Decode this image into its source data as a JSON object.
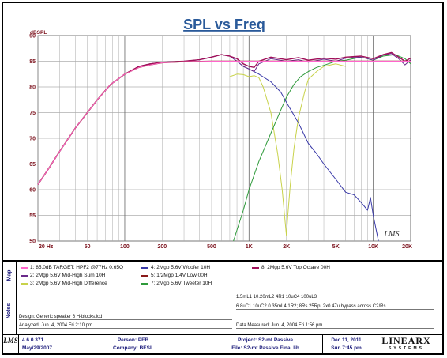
{
  "chart_data": {
    "type": "line",
    "title": "SPL vs Freq",
    "ylabel": "dBSPL",
    "xscale": "log",
    "xlim": [
      20,
      20000
    ],
    "ylim": [
      50,
      90
    ],
    "x_tick_labels": [
      {
        "value": 20,
        "label": "20 Hz"
      },
      {
        "value": 50,
        "label": "50"
      },
      {
        "value": 100,
        "label": "100"
      },
      {
        "value": 200,
        "label": "200"
      },
      {
        "value": 500,
        "label": "500"
      },
      {
        "value": 1000,
        "label": "1K"
      },
      {
        "value": 2000,
        "label": "2K"
      },
      {
        "value": 5000,
        "label": "5K"
      },
      {
        "value": 10000,
        "label": "10K"
      },
      {
        "value": 20000,
        "label": "20K"
      }
    ],
    "y_ticks": [
      50,
      55,
      60,
      65,
      70,
      75,
      80,
      85,
      90
    ],
    "grid": true,
    "watermark": "LMS",
    "series": [
      {
        "name": "1: 85.0dB TARGET: HPF2 @77Hz 0.65Q",
        "color": "#ff66cc",
        "x": [
          20,
          25,
          30,
          40,
          50,
          60,
          77,
          100,
          130,
          160,
          200,
          300,
          500,
          700,
          1000,
          2000,
          5000,
          10000,
          20000
        ],
        "y": [
          61,
          64.5,
          67.5,
          72,
          75,
          77.5,
          80.5,
          82.5,
          83.8,
          84.3,
          84.7,
          84.9,
          85,
          85,
          85,
          85,
          85,
          85,
          85
        ]
      },
      {
        "name": "2: 2Mgp 5.6V Mid-High Sum 10H",
        "color": "#6a2a8a",
        "x": [
          20,
          25,
          30,
          40,
          50,
          60,
          77,
          100,
          130,
          160,
          200,
          300,
          400,
          500,
          600,
          700,
          800,
          900,
          1000,
          1100,
          1200,
          1500,
          2000,
          2500,
          3000,
          4000,
          5000,
          6000,
          8000,
          10000,
          12000,
          14000,
          16000,
          18000,
          20000
        ],
        "y": [
          61,
          64.5,
          67.5,
          72,
          75,
          77.5,
          80.5,
          82.5,
          84,
          84.5,
          84.8,
          85,
          85.3,
          85.8,
          86.3,
          86,
          85,
          84,
          83.5,
          83,
          84.5,
          85.5,
          85,
          85.3,
          84.8,
          85.4,
          85,
          85.6,
          85.8,
          85.2,
          86.2,
          86.5,
          85.5,
          84.3,
          85.3
        ]
      },
      {
        "name": "3: 2Mgp 5.6V Mid-High Difference",
        "color": "#c8d24a",
        "x": [
          700,
          800,
          900,
          1000,
          1100,
          1200,
          1300,
          1500,
          1700,
          1850,
          1950,
          2000,
          2050,
          2150,
          2300,
          2500,
          2800,
          3000,
          3500,
          4000,
          5000,
          6000
        ],
        "y": [
          82,
          82.5,
          82.4,
          82,
          82.2,
          81.8,
          80,
          75,
          67,
          60,
          54,
          51,
          55,
          61,
          68,
          74,
          79,
          81.5,
          83,
          84,
          84.5,
          84
        ]
      },
      {
        "name": "4: 2Mgp 5.6V Woofer 10H",
        "color": "#3a3aa8",
        "x": [
          20,
          25,
          30,
          40,
          50,
          60,
          77,
          100,
          130,
          160,
          200,
          300,
          400,
          500,
          600,
          700,
          800,
          900,
          1000,
          1200,
          1500,
          1800,
          2000,
          2500,
          3000,
          3500,
          4000,
          5000,
          6000,
          7000,
          8000,
          9000,
          9500,
          10000,
          11000
        ],
        "y": [
          61,
          64.5,
          67.5,
          72,
          75,
          77.5,
          80.5,
          82.5,
          84,
          84.5,
          84.8,
          85,
          85.3,
          85.8,
          86.3,
          86,
          85,
          84,
          83.5,
          82.5,
          81,
          79,
          77,
          73,
          69,
          67,
          65,
          62,
          59.5,
          59,
          57.5,
          56,
          58.5,
          55,
          50
        ]
      },
      {
        "name": "5: 1/2Mgp 1.4V Low 00H",
        "color": "#8a1a1a",
        "x": [
          20,
          25,
          30,
          40,
          50,
          60,
          77,
          100,
          130,
          160,
          200,
          300,
          500,
          700,
          1000,
          2000,
          5000,
          10000,
          20000
        ],
        "y": [
          61,
          64.5,
          67.5,
          72,
          75,
          77.5,
          80.5,
          82.5,
          83.8,
          84.3,
          84.7,
          84.9,
          85,
          85,
          85,
          85,
          85,
          85,
          85
        ]
      },
      {
        "name": "7: 2Mgp 5.6V Tweeter 10H",
        "color": "#2e9a3a",
        "x": [
          750,
          900,
          1000,
          1200,
          1500,
          1800,
          2000,
          2300,
          2600,
          3000,
          3500,
          4000,
          5000,
          6000,
          8000,
          10000,
          12000,
          15000,
          18000,
          20000
        ],
        "y": [
          50,
          56,
          60,
          65.5,
          71,
          75.5,
          78,
          80.5,
          82,
          83,
          83.8,
          84.2,
          85,
          85.2,
          85.8,
          85.2,
          86,
          86.3,
          85.5,
          84.5
        ]
      },
      {
        "name": "8: 2Mgp 5.6V Top Octave 00H",
        "color": "#a0105a",
        "x": [
          20,
          25,
          30,
          40,
          50,
          60,
          77,
          100,
          130,
          160,
          200,
          300,
          400,
          500,
          600,
          700,
          800,
          900,
          1000,
          1100,
          1200,
          1500,
          2000,
          2500,
          3000,
          4000,
          5000,
          6000,
          8000,
          10000,
          12000,
          14000,
          16000,
          18000,
          20000
        ],
        "y": [
          61,
          64.5,
          67.5,
          72,
          75,
          77.5,
          80.5,
          82.5,
          84,
          84.5,
          84.8,
          85,
          85.3,
          85.8,
          86.3,
          86,
          85.5,
          84.5,
          84,
          83.8,
          85,
          85.8,
          85.3,
          85.7,
          85.2,
          85.6,
          85.4,
          85.8,
          86,
          85.5,
          86.3,
          86.7,
          85.8,
          85,
          85.6
        ]
      }
    ]
  },
  "legend": {
    "panel_label": "Map",
    "items": [
      {
        "text": "1: 85.0dB TARGET: HPF2 @77Hz 0.65Q",
        "color": "#ff66cc"
      },
      {
        "text": "2: 2Mgp 5.6V Mid-High Sum 10H",
        "color": "#6a2a8a"
      },
      {
        "text": "3: 2Mgp 5.6V Mid-High Difference",
        "color": "#c8d24a"
      },
      {
        "text": "4: 2Mgp 5.6V Woofer 10H",
        "color": "#3a3aa8"
      },
      {
        "text": "5: 1/2Mgp 1.4V Low 00H",
        "color": "#8a1a1a"
      },
      {
        "text": "7: 2Mgp 5.6V Tweeter 10H",
        "color": "#2e9a3a"
      },
      {
        "text": "8: 2Mgp 5.6V Top Octave 00H",
        "color": "#a0105a"
      }
    ]
  },
  "notes": {
    "panel_label": "Notes",
    "line1": "1.5mL1 10.20mL2 4R1 10uC4 100uL3",
    "line2": "6.8uC1 10uC2 0.35mL4 1R2; 8Rs 25Rp; 2x0.47u bypass across C2/Rs",
    "design": "Design: Generic speaker 6 H-blocks.lcd",
    "analyzed": "Analyzed: Jun. 4, 2004  Fri  2:10 pm",
    "measured": "Data Measured: Jun. 4, 2004  Fri  1:56 pm"
  },
  "footer": {
    "logo": "LMS",
    "version": "4.6.0.371",
    "version_date": "May/29/2007",
    "person": "Person: PEB",
    "company": "Company: BESL",
    "project": "Project: S2-mt Passive",
    "file": "File: S2-mt Passive Final.lib",
    "date": "Dec 11, 2011",
    "time": "Sun  7:45 pm",
    "brand": "LINEARX",
    "brand_sub": "SYSTEMS"
  }
}
